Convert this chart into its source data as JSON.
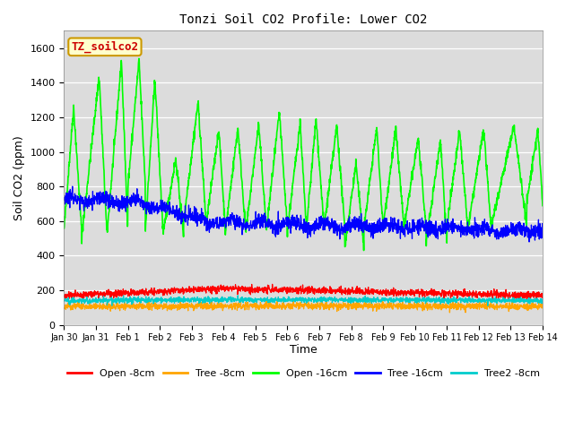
{
  "title": "Tonzi Soil CO2 Profile: Lower CO2",
  "ylabel": "Soil CO2 (ppm)",
  "xlabel": "Time",
  "annotation": "TZ_soilco2",
  "plot_bg_color": "#dcdcdc",
  "ylim": [
    0,
    1700
  ],
  "yticks": [
    0,
    200,
    400,
    600,
    800,
    1000,
    1200,
    1400,
    1600
  ],
  "legend_labels": [
    "Open -8cm",
    "Tree -8cm",
    "Open -16cm",
    "Tree -16cm",
    "Tree2 -8cm"
  ],
  "colors": {
    "open8": "#ff0000",
    "tree8": "#ffa500",
    "open16": "#00ff00",
    "tree16": "#0000ff",
    "tree2_8": "#00cccc"
  },
  "n_days": 15,
  "xtick_labels": [
    "Jan 30",
    "Jan 31",
    "Feb 1",
    "Feb 2",
    "Feb 3",
    "Feb 4",
    "Feb 5",
    "Feb 6",
    "Feb 7",
    "Feb 8",
    "Feb 9",
    "Feb 10",
    "Feb 11",
    "Feb 12",
    "Feb 13",
    "Feb 14"
  ]
}
